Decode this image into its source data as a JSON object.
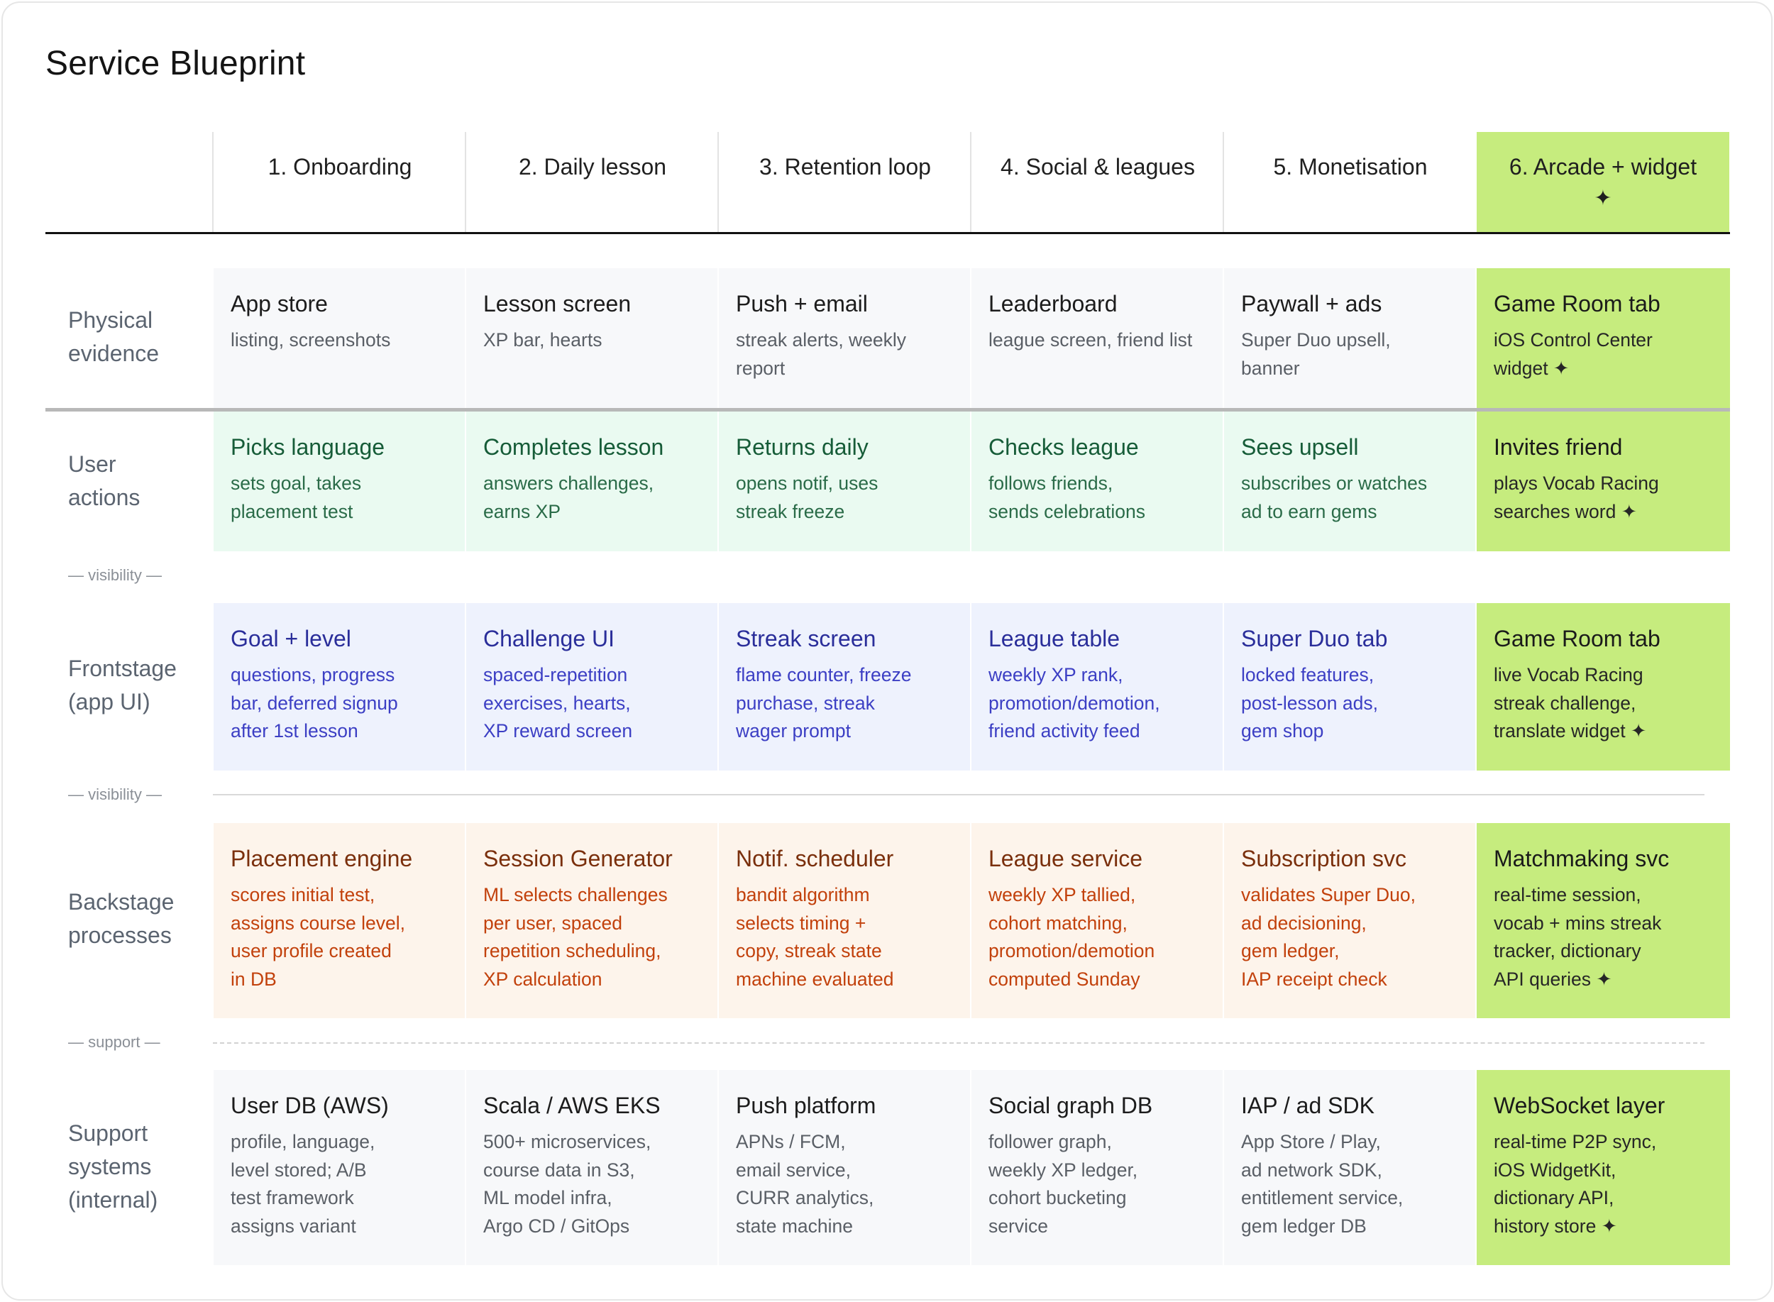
{
  "title": "Service Blueprint",
  "colors": {
    "highlight": "#c6ec7e",
    "user": "#eafaf1",
    "frontstage": "#eef2fd",
    "backstage": "#fdf4eb",
    "neutral": "#f7f8fa"
  },
  "stages": [
    {
      "label": "1. Onboarding"
    },
    {
      "label": "2. Daily lesson"
    },
    {
      "label": "3. Retention loop"
    },
    {
      "label": "4. Social & leagues"
    },
    {
      "label": "5. Monetisation"
    },
    {
      "label": "6. Arcade + widget",
      "star": "✦"
    }
  ],
  "lanes": {
    "physical": {
      "label_1": "Physical",
      "label_2": "evidence"
    },
    "user": {
      "label_1": "User",
      "label_2": "actions"
    },
    "front": {
      "label_1": "Frontstage",
      "label_2": "(app UI)"
    },
    "back": {
      "label_1": "Backstage",
      "label_2": "processes"
    },
    "support": {
      "label_1": "Support",
      "label_2": "systems",
      "label_3": "(internal)"
    }
  },
  "dividers": {
    "visibility_1": "— visibility —",
    "visibility_2": "— visibility —",
    "support": "— support —"
  },
  "rows": {
    "physical": [
      {
        "title": "App store",
        "d1": "listing, screenshots",
        "d2": ""
      },
      {
        "title": "Lesson screen",
        "d1": "XP bar, hearts",
        "d2": ""
      },
      {
        "title": "Push + email",
        "d1": "streak alerts, weekly",
        "d2": "report"
      },
      {
        "title": "Leaderboard",
        "d1": "league screen, friend list",
        "d2": ""
      },
      {
        "title": "Paywall + ads",
        "d1": "Super Duo upsell,",
        "d2": "banner"
      },
      {
        "title": "Game Room tab",
        "d1": "iOS Control Center",
        "d2": "widget ✦"
      }
    ],
    "user": [
      {
        "title": "Picks language",
        "d1": "sets goal, takes",
        "d2": "placement test"
      },
      {
        "title": "Completes lesson",
        "d1": "answers challenges,",
        "d2": "earns XP"
      },
      {
        "title": "Returns daily",
        "d1": "opens notif, uses",
        "d2": "streak freeze"
      },
      {
        "title": "Checks league",
        "d1": "follows friends,",
        "d2": "sends celebrations"
      },
      {
        "title": "Sees upsell",
        "d1": "subscribes or watches",
        "d2": "ad to earn gems"
      },
      {
        "title": "Invites friend",
        "d1": "plays Vocab Racing",
        "d2": "searches word ✦"
      }
    ],
    "front": [
      {
        "title": "Goal + level",
        "d1": "questions, progress",
        "d2": "bar, deferred signup",
        "d3": "after 1st lesson"
      },
      {
        "title": "Challenge UI",
        "d1": "spaced-repetition",
        "d2": "exercises, hearts,",
        "d3": "XP reward screen"
      },
      {
        "title": "Streak screen",
        "d1": "flame counter, freeze",
        "d2": "purchase, streak",
        "d3": "wager prompt"
      },
      {
        "title": "League table",
        "d1": "weekly XP rank,",
        "d2": "promotion/demotion,",
        "d3": "friend activity feed"
      },
      {
        "title": "Super Duo tab",
        "d1": "locked features,",
        "d2": "post-lesson ads,",
        "d3": "gem shop"
      },
      {
        "title": "Game Room tab",
        "d1": "live Vocab Racing",
        "d2": "streak challenge,",
        "d3": "translate widget ✦"
      }
    ],
    "back": [
      {
        "title": "Placement engine",
        "d1": "scores initial test,",
        "d2": "assigns course level,",
        "d3": "user profile created",
        "d4": "in DB"
      },
      {
        "title": "Session Generator",
        "d1": "ML selects challenges",
        "d2": "per user, spaced",
        "d3": "repetition scheduling,",
        "d4": "XP calculation"
      },
      {
        "title": "Notif. scheduler",
        "d1": "bandit algorithm",
        "d2": "selects timing +",
        "d3": "copy, streak state",
        "d4": "machine evaluated"
      },
      {
        "title": "League service",
        "d1": "weekly XP tallied,",
        "d2": "cohort matching,",
        "d3": "promotion/demotion",
        "d4": "computed Sunday"
      },
      {
        "title": "Subscription svc",
        "d1": "validates Super Duo,",
        "d2": "ad decisioning,",
        "d3": "gem ledger,",
        "d4": "IAP receipt check"
      },
      {
        "title": "Matchmaking svc",
        "d1": "real-time session,",
        "d2": "vocab + mins streak",
        "d3": "tracker, dictionary",
        "d4": "API queries ✦"
      }
    ],
    "support": [
      {
        "title": "User DB (AWS)",
        "d1": "profile, language,",
        "d2": "level stored; A/B",
        "d3": "test framework",
        "d4": "assigns variant"
      },
      {
        "title": "Scala / AWS EKS",
        "d1": "500+ microservices,",
        "d2": "course data in S3,",
        "d3": "ML model infra,",
        "d4": "Argo CD / GitOps"
      },
      {
        "title": "Push platform",
        "d1": "APNs / FCM,",
        "d2": "email service,",
        "d3": "CURR analytics,",
        "d4": "state machine"
      },
      {
        "title": "Social graph DB",
        "d1": "follower graph,",
        "d2": "weekly XP ledger,",
        "d3": "cohort bucketing",
        "d4": "service"
      },
      {
        "title": "IAP / ad SDK",
        "d1": "App Store / Play,",
        "d2": "ad network SDK,",
        "d3": "entitlement service,",
        "d4": "gem ledger DB"
      },
      {
        "title": "WebSocket layer",
        "d1": "real-time P2P sync,",
        "d2": "iOS WidgetKit,",
        "d3": "dictionary API,",
        "d4": "history store ✦"
      }
    ]
  }
}
